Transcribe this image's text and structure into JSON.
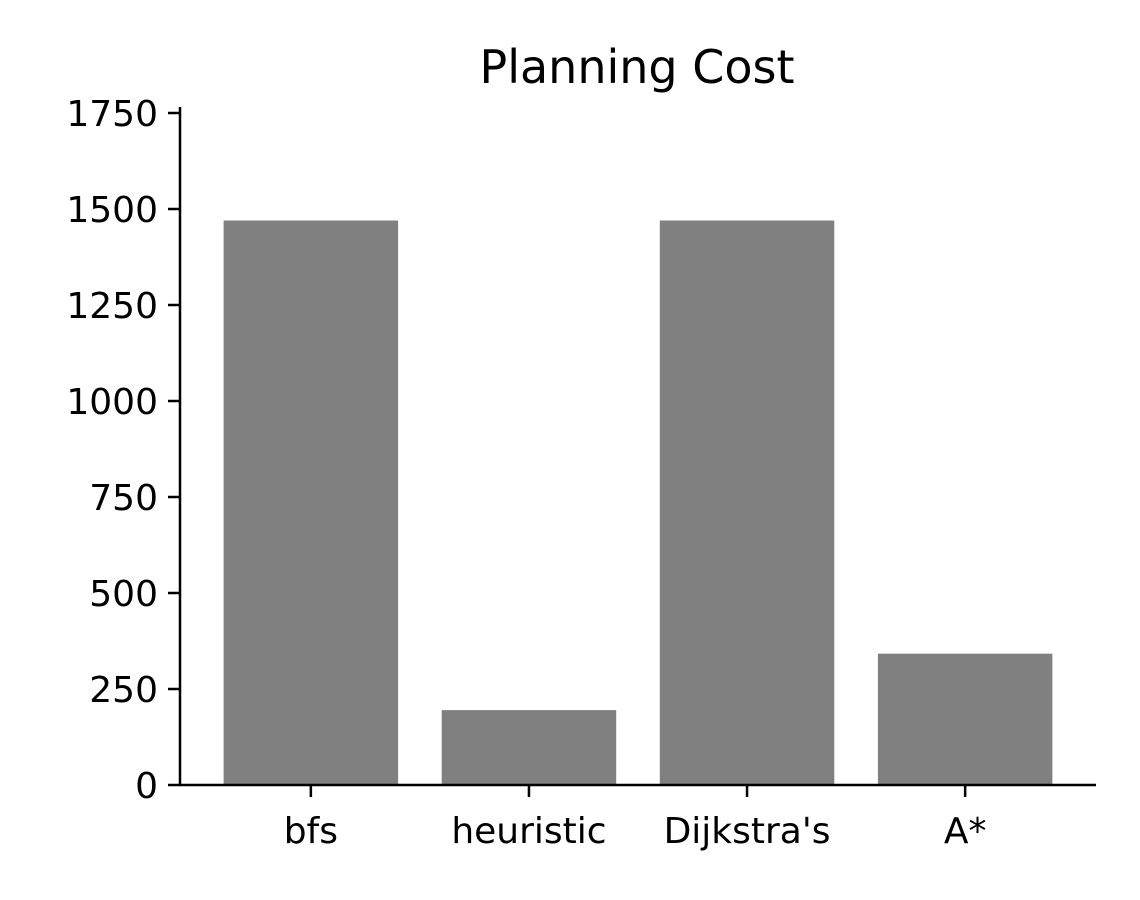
{
  "chart_data": {
    "type": "bar",
    "title": "Planning Cost",
    "xlabel": "",
    "ylabel": "",
    "categories": [
      "bfs",
      "heuristic",
      "Dijkstra's",
      "A*"
    ],
    "values": [
      1470,
      195,
      1470,
      342
    ],
    "ylim": [
      0,
      1750
    ],
    "yticks": [
      0,
      250,
      500,
      750,
      1000,
      1250,
      1500,
      1750
    ],
    "grid": false,
    "legend": "none",
    "bar_color": "#808080",
    "axis_color": "#000000"
  }
}
